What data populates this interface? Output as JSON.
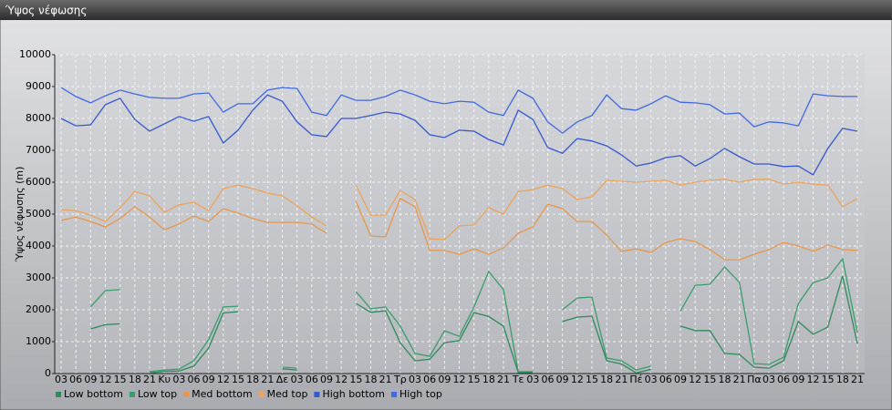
{
  "chart_data": {
    "type": "line",
    "title": "Ύψος νέφωσης",
    "ylabel": "Ύψος νέφωσης (m)",
    "categories": [
      "03",
      "06",
      "09",
      "12",
      "15",
      "18",
      "21",
      "Κυ",
      "03",
      "06",
      "09",
      "12",
      "15",
      "18",
      "21",
      "Δε",
      "03",
      "06",
      "09",
      "12",
      "15",
      "18",
      "21",
      "Τρ",
      "03",
      "06",
      "09",
      "12",
      "15",
      "18",
      "21",
      "Τε",
      "03",
      "06",
      "09",
      "12",
      "15",
      "18",
      "21",
      "Πέ",
      "03",
      "06",
      "09",
      "12",
      "15",
      "18",
      "21",
      "Πα",
      "03",
      "06",
      "09",
      "12",
      "15",
      "18",
      "21"
    ],
    "series": [
      {
        "name": "Low bottom",
        "color": "#2f8a5c",
        "values": [
          null,
          null,
          1400,
          1530,
          1560,
          null,
          20,
          70,
          80,
          230,
          800,
          1900,
          1940,
          null,
          null,
          150,
          110,
          null,
          null,
          null,
          2200,
          1920,
          1970,
          970,
          400,
          450,
          970,
          1030,
          1910,
          1790,
          1490,
          30,
          30,
          null,
          1630,
          1770,
          1800,
          400,
          300,
          20,
          130,
          null,
          1490,
          1350,
          1350,
          630,
          600,
          200,
          170,
          400,
          1630,
          1230,
          1460,
          3060,
          940
        ]
      },
      {
        "name": "Low top",
        "color": "#3a9d6b",
        "values": [
          null,
          null,
          2090,
          2600,
          2630,
          null,
          60,
          110,
          140,
          400,
          1060,
          2090,
          2110,
          null,
          null,
          200,
          170,
          null,
          null,
          null,
          2570,
          2030,
          2090,
          1490,
          630,
          540,
          1340,
          1170,
          2090,
          3200,
          2630,
          60,
          60,
          null,
          2000,
          2370,
          2400,
          490,
          400,
          110,
          230,
          null,
          1960,
          2770,
          2800,
          3340,
          2860,
          310,
          290,
          510,
          2200,
          2850,
          3000,
          3600,
          1290
        ]
      },
      {
        "name": "Med bottom",
        "color": "#e8974a",
        "values": [
          4800,
          4910,
          4770,
          4600,
          4860,
          5230,
          4910,
          4510,
          4690,
          4940,
          4770,
          5170,
          5030,
          4860,
          4740,
          4740,
          4740,
          4690,
          4400,
          null,
          5400,
          4310,
          4290,
          5490,
          5230,
          3860,
          3860,
          3740,
          3910,
          3740,
          3940,
          4400,
          4600,
          5310,
          5170,
          4770,
          4770,
          4340,
          3830,
          3910,
          3800,
          4110,
          4230,
          4140,
          3890,
          3570,
          3570,
          3740,
          3890,
          4110,
          4000,
          3830,
          4030,
          3890,
          3860
        ]
      },
      {
        "name": "Med top",
        "color": "#eda35a",
        "values": [
          5140,
          5110,
          4970,
          4770,
          5200,
          5710,
          5570,
          5060,
          5290,
          5370,
          5110,
          5800,
          5910,
          5800,
          5660,
          5570,
          5260,
          4910,
          4630,
          null,
          5910,
          4970,
          4970,
          5740,
          5460,
          4230,
          4200,
          4630,
          4660,
          5200,
          5000,
          5710,
          5770,
          5910,
          5800,
          5460,
          5540,
          6060,
          6030,
          6000,
          6030,
          6060,
          5910,
          6000,
          6060,
          6090,
          6000,
          6090,
          6090,
          5940,
          6000,
          5940,
          5910,
          5230,
          5490
        ]
      },
      {
        "name": "High bottom",
        "color": "#3557d0",
        "values": [
          8000,
          7770,
          7800,
          8430,
          8630,
          7970,
          7600,
          7830,
          8060,
          7910,
          8060,
          7230,
          7630,
          8260,
          8740,
          8540,
          7890,
          7490,
          7430,
          8000,
          8000,
          8090,
          8200,
          8140,
          7940,
          7490,
          7400,
          7630,
          7600,
          7340,
          7170,
          8260,
          7970,
          7090,
          6910,
          7370,
          7290,
          7140,
          6860,
          6510,
          6600,
          6770,
          6830,
          6510,
          6740,
          7060,
          6800,
          6570,
          6570,
          6490,
          6510,
          6230,
          7060,
          7690,
          7600
        ]
      },
      {
        "name": "High top",
        "color": "#4169e1",
        "values": [
          8970,
          8690,
          8490,
          8710,
          8890,
          8770,
          8660,
          8630,
          8630,
          8770,
          8800,
          8200,
          8460,
          8460,
          8890,
          8970,
          8940,
          8200,
          8090,
          8740,
          8570,
          8570,
          8690,
          8890,
          8740,
          8540,
          8460,
          8540,
          8510,
          8200,
          8090,
          8890,
          8630,
          7890,
          7540,
          7890,
          8090,
          8740,
          8310,
          8260,
          8460,
          8710,
          8510,
          8490,
          8430,
          8140,
          8170,
          7740,
          7890,
          7860,
          7770,
          8770,
          8710,
          8690,
          8690
        ]
      }
    ],
    "ylim": [
      0,
      10000
    ],
    "yticks": [
      0,
      1000,
      2000,
      3000,
      4000,
      5000,
      6000,
      7000,
      8000,
      9000,
      10000
    ],
    "grid": true,
    "legend": "bottom"
  }
}
